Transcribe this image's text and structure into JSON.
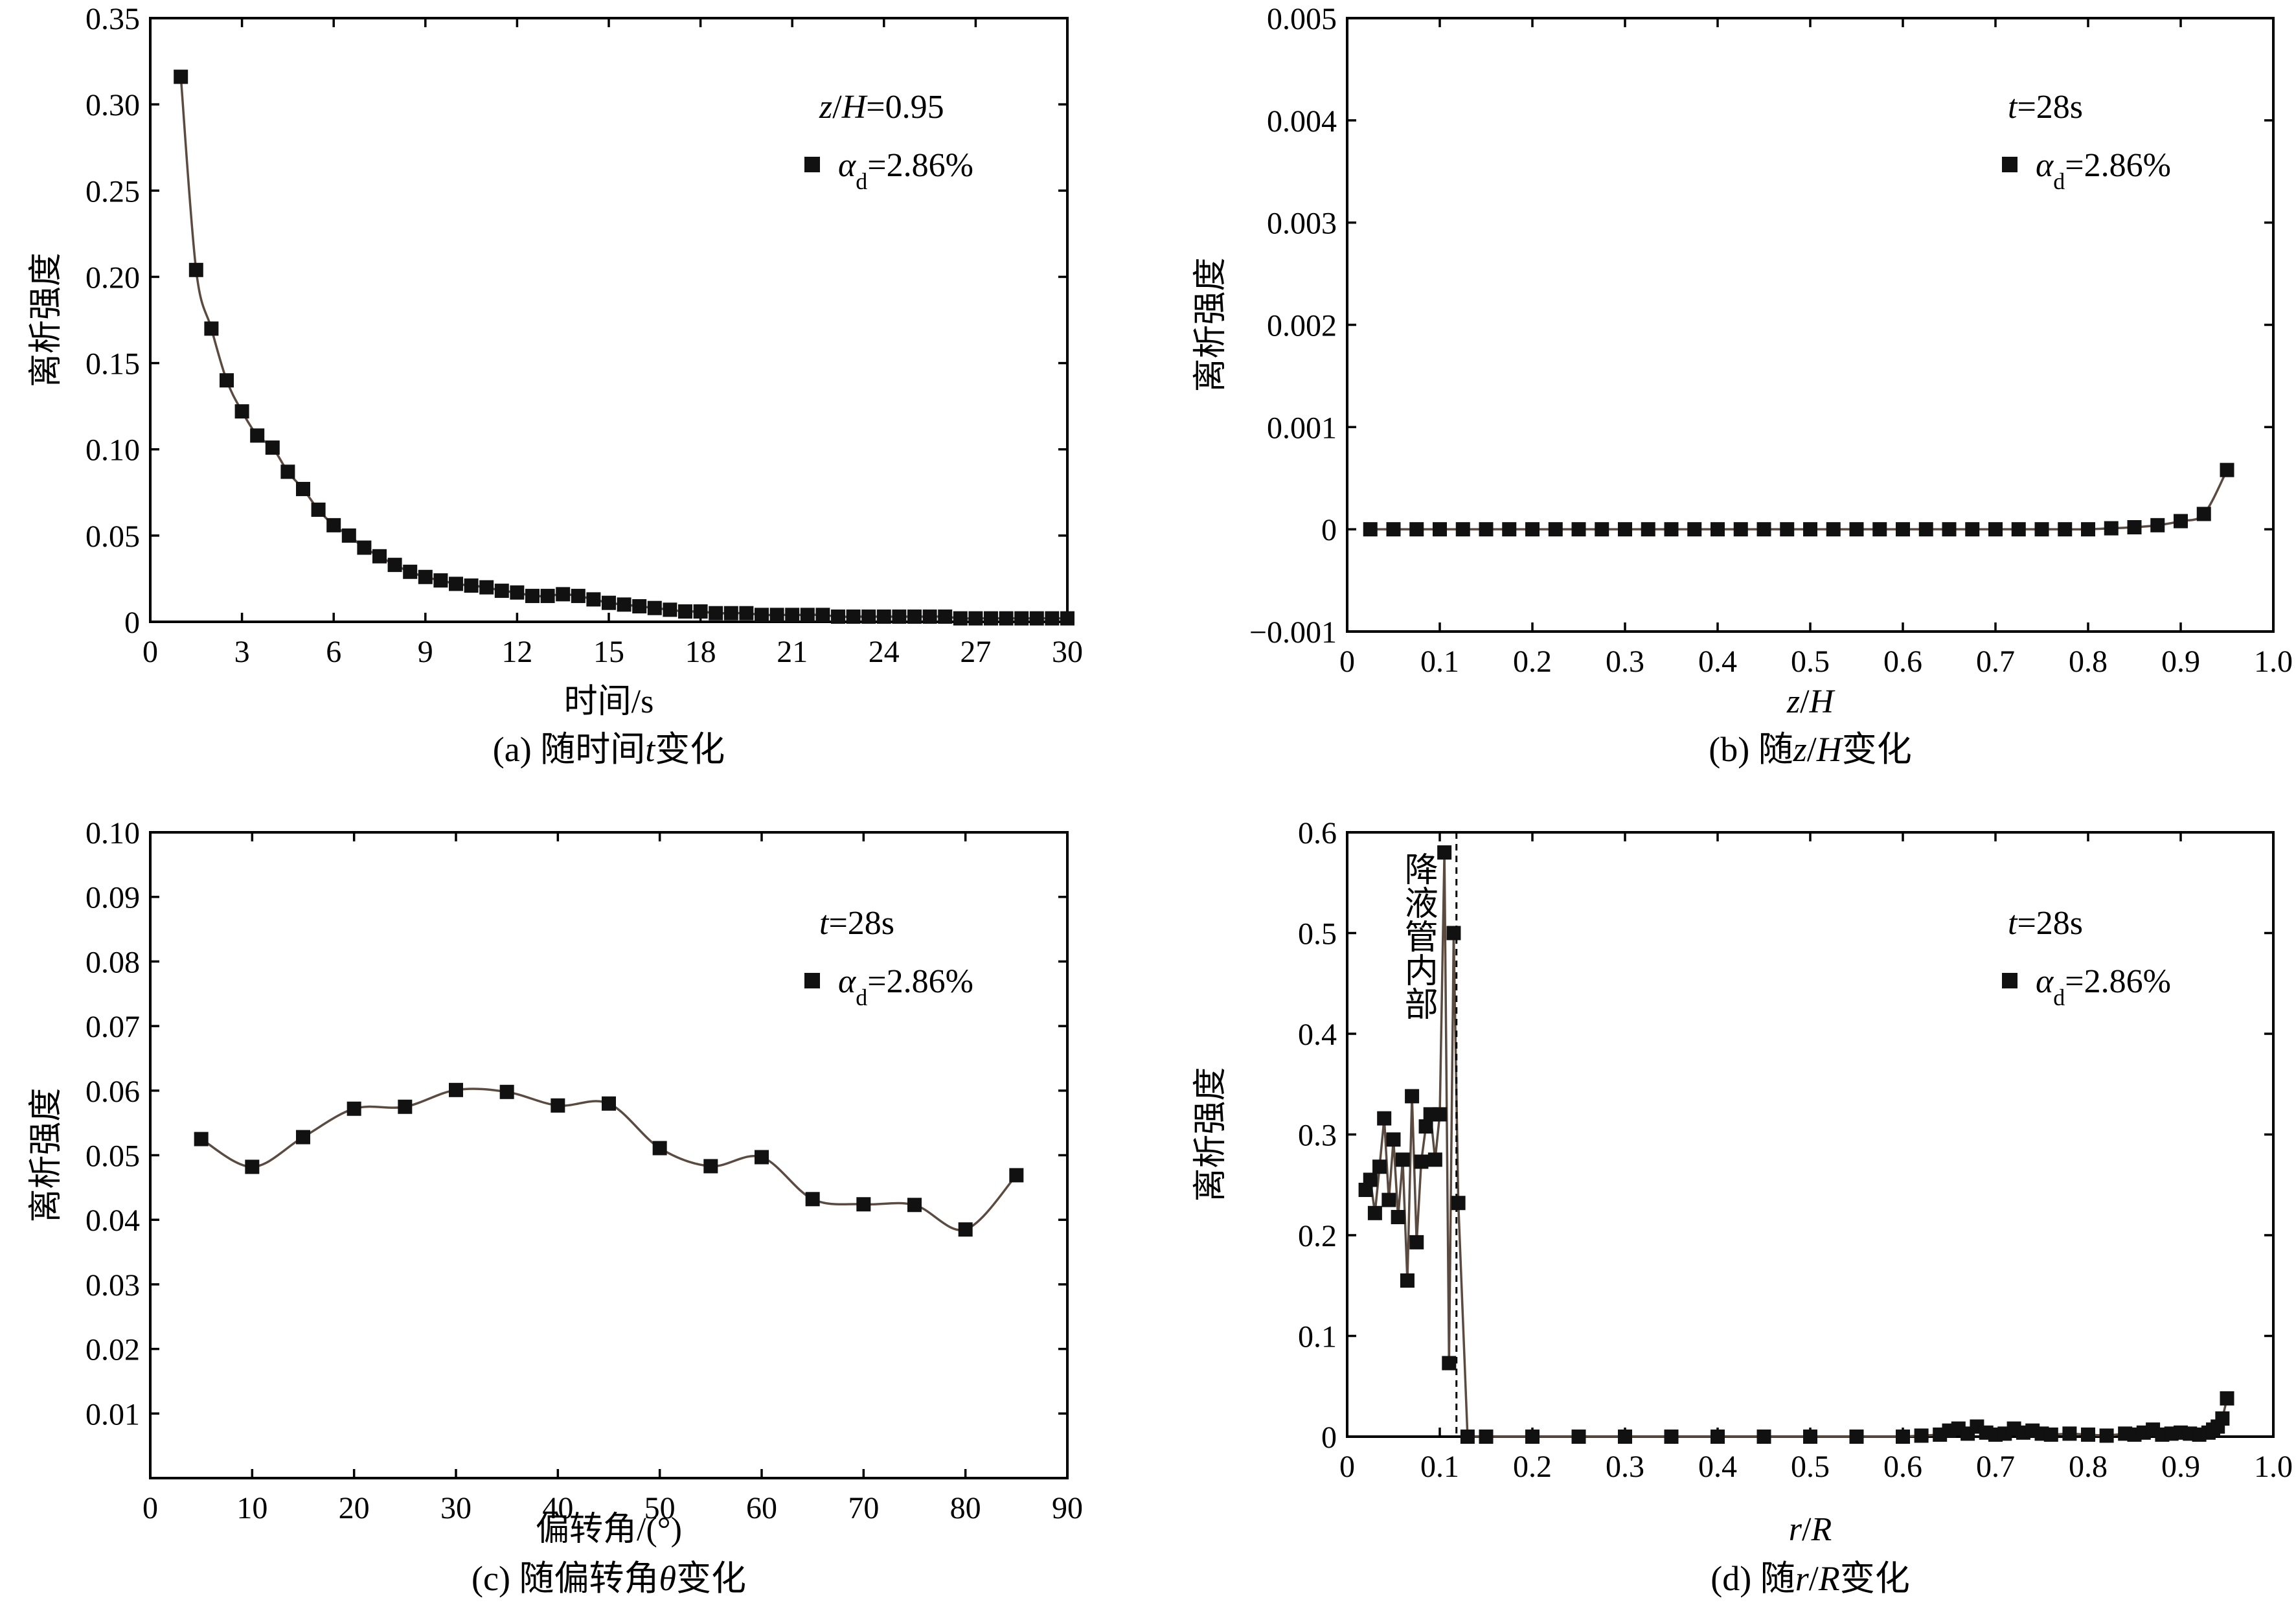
{
  "chart_data": [
    {
      "id": "a",
      "type": "line",
      "title": "(a) 随时间t变化",
      "xlabel": "时间/s",
      "ylabel": "离析强度",
      "xlim": [
        0,
        30
      ],
      "ylim": [
        0,
        0.35
      ],
      "xticks": [
        0,
        3,
        6,
        9,
        12,
        15,
        18,
        21,
        24,
        27,
        30
      ],
      "yticks": [
        0,
        0.05,
        0.1,
        0.15,
        0.2,
        0.25,
        0.3,
        0.35
      ],
      "xtick_labels": [
        "0",
        "3",
        "6",
        "9",
        "12",
        "15",
        "18",
        "21",
        "24",
        "27",
        "30"
      ],
      "ytick_labels": [
        "0",
        "0.05",
        "0.10",
        "0.15",
        "0.20",
        "0.25",
        "0.30",
        "0.35"
      ],
      "annotation": "z/H=0.95",
      "legend": "αd=2.86%",
      "x": [
        1.0,
        1.5,
        2.0,
        2.5,
        3.0,
        3.5,
        4.0,
        4.5,
        5.0,
        5.5,
        6.0,
        6.5,
        7.0,
        7.5,
        8.0,
        8.5,
        9.0,
        9.5,
        10.0,
        10.5,
        11.0,
        11.5,
        12.0,
        12.5,
        13.0,
        13.5,
        14.0,
        14.5,
        15.0,
        15.5,
        16.0,
        16.5,
        17.0,
        17.5,
        18.0,
        18.5,
        19.0,
        19.5,
        20.0,
        20.5,
        21.0,
        21.5,
        22.0,
        22.5,
        23.0,
        23.5,
        24.0,
        24.5,
        25.0,
        25.5,
        26.0,
        26.5,
        27.0,
        27.5,
        28.0,
        28.5,
        29.0,
        29.5,
        30.0
      ],
      "y": [
        0.316,
        0.204,
        0.17,
        0.14,
        0.122,
        0.108,
        0.101,
        0.087,
        0.077,
        0.065,
        0.056,
        0.05,
        0.043,
        0.038,
        0.033,
        0.029,
        0.026,
        0.024,
        0.022,
        0.021,
        0.02,
        0.018,
        0.017,
        0.015,
        0.015,
        0.016,
        0.015,
        0.013,
        0.011,
        0.01,
        0.009,
        0.008,
        0.007,
        0.006,
        0.006,
        0.005,
        0.005,
        0.005,
        0.004,
        0.004,
        0.004,
        0.004,
        0.004,
        0.003,
        0.003,
        0.003,
        0.003,
        0.003,
        0.003,
        0.003,
        0.003,
        0.002,
        0.002,
        0.002,
        0.002,
        0.002,
        0.002,
        0.002,
        0.002
      ]
    },
    {
      "id": "b",
      "type": "line",
      "title": "(b) 随z/H变化",
      "xlabel": "z/H",
      "ylabel": "离析强度",
      "xlim": [
        0,
        1.0
      ],
      "ylim": [
        -0.001,
        0.005
      ],
      "xticks": [
        0,
        0.1,
        0.2,
        0.3,
        0.4,
        0.5,
        0.6,
        0.7,
        0.8,
        0.9,
        1.0
      ],
      "yticks": [
        -0.001,
        0,
        0.001,
        0.002,
        0.003,
        0.004,
        0.005
      ],
      "xtick_labels": [
        "0",
        "0.1",
        "0.2",
        "0.3",
        "0.4",
        "0.5",
        "0.6",
        "0.7",
        "0.8",
        "0.9",
        "1.0"
      ],
      "ytick_labels": [
        "−0.001",
        "0",
        "0.001",
        "0.002",
        "0.003",
        "0.004",
        "0.005"
      ],
      "annotation": "t=28s",
      "legend": "αd=2.86%",
      "x": [
        0.025,
        0.05,
        0.075,
        0.1,
        0.125,
        0.15,
        0.175,
        0.2,
        0.225,
        0.25,
        0.275,
        0.3,
        0.325,
        0.35,
        0.375,
        0.4,
        0.425,
        0.45,
        0.475,
        0.5,
        0.525,
        0.55,
        0.575,
        0.6,
        0.625,
        0.65,
        0.675,
        0.7,
        0.725,
        0.75,
        0.775,
        0.8,
        0.825,
        0.85,
        0.875,
        0.9,
        0.925,
        0.95
      ],
      "y": [
        0,
        0,
        0,
        0,
        0,
        0,
        0,
        0,
        0,
        0,
        0,
        0,
        0,
        0,
        0,
        0,
        0,
        0,
        0,
        0,
        0,
        0,
        0,
        0,
        0,
        0,
        0,
        0,
        0,
        0,
        0,
        0,
        1e-05,
        2e-05,
        4e-05,
        8e-05,
        0.00015,
        0.00058
      ]
    },
    {
      "id": "c",
      "type": "line",
      "title": "(c) 随偏转角θ变化",
      "xlabel": "偏转角/(°)",
      "ylabel": "离析强度",
      "xlim": [
        0,
        90
      ],
      "ylim": [
        0,
        0.1
      ],
      "xticks": [
        0,
        10,
        20,
        30,
        40,
        50,
        60,
        70,
        80,
        90
      ],
      "yticks": [
        0.01,
        0.02,
        0.03,
        0.04,
        0.05,
        0.06,
        0.07,
        0.08,
        0.09,
        0.1
      ],
      "xtick_labels": [
        "0",
        "10",
        "20",
        "30",
        "40",
        "50",
        "60",
        "70",
        "80",
        "90"
      ],
      "ytick_labels": [
        "0.01",
        "0.02",
        "0.03",
        "0.04",
        "0.05",
        "0.06",
        "0.07",
        "0.08",
        "0.09",
        "0.10"
      ],
      "annotation": "t=28s",
      "legend": "αd=2.86%",
      "x": [
        5,
        10,
        15,
        20,
        25,
        30,
        35,
        40,
        45,
        50,
        55,
        60,
        65,
        70,
        75,
        80,
        85
      ],
      "y": [
        0.0525,
        0.0482,
        0.0528,
        0.0572,
        0.0575,
        0.0601,
        0.0598,
        0.0577,
        0.058,
        0.0511,
        0.0483,
        0.0497,
        0.0432,
        0.0424,
        0.0423,
        0.0385,
        0.0469
      ]
    },
    {
      "id": "d",
      "type": "line",
      "title": "(d) 随r/R变化",
      "xlabel": "r/R",
      "ylabel": "离析强度",
      "xlim": [
        0,
        1.0
      ],
      "ylim": [
        0,
        0.6
      ],
      "xticks": [
        0,
        0.1,
        0.2,
        0.3,
        0.4,
        0.5,
        0.6,
        0.7,
        0.8,
        0.9,
        1.0
      ],
      "yticks": [
        0,
        0.1,
        0.2,
        0.3,
        0.4,
        0.5,
        0.6
      ],
      "xtick_labels": [
        "0",
        "0.1",
        "0.2",
        "0.3",
        "0.4",
        "0.5",
        "0.6",
        "0.7",
        "0.8",
        "0.9",
        "1.0"
      ],
      "ytick_labels": [
        "0",
        "0.1",
        "0.2",
        "0.3",
        "0.4",
        "0.5",
        "0.6"
      ],
      "annotation": "t=28s",
      "legend": "αd=2.86%",
      "region_label": "降液管内部",
      "region_boundary_x": 0.118,
      "x": [
        0.02,
        0.025,
        0.03,
        0.035,
        0.04,
        0.045,
        0.05,
        0.055,
        0.06,
        0.065,
        0.07,
        0.075,
        0.08,
        0.085,
        0.09,
        0.095,
        0.1,
        0.105,
        0.11,
        0.115,
        0.12,
        0.13,
        0.15,
        0.2,
        0.25,
        0.3,
        0.35,
        0.4,
        0.45,
        0.5,
        0.55,
        0.6,
        0.62,
        0.64,
        0.65,
        0.66,
        0.67,
        0.68,
        0.69,
        0.7,
        0.71,
        0.72,
        0.73,
        0.74,
        0.75,
        0.76,
        0.78,
        0.8,
        0.82,
        0.84,
        0.85,
        0.86,
        0.87,
        0.88,
        0.89,
        0.9,
        0.91,
        0.92,
        0.93,
        0.935,
        0.94,
        0.945,
        0.95
      ],
      "y": [
        0.245,
        0.255,
        0.222,
        0.268,
        0.316,
        0.235,
        0.295,
        0.218,
        0.275,
        0.155,
        0.338,
        0.193,
        0.273,
        0.308,
        0.32,
        0.275,
        0.32,
        0.58,
        0.073,
        0.5,
        0.232,
        0.0,
        0.0,
        0.0,
        0.0,
        0.0,
        0.0,
        0.0,
        0.0,
        0.0,
        0.0,
        0.0,
        0.001,
        0.002,
        0.006,
        0.008,
        0.003,
        0.01,
        0.004,
        0.002,
        0.003,
        0.008,
        0.004,
        0.006,
        0.003,
        0.002,
        0.003,
        0.002,
        0.001,
        0.003,
        0.002,
        0.004,
        0.007,
        0.002,
        0.003,
        0.004,
        0.003,
        0.002,
        0.004,
        0.007,
        0.01,
        0.018,
        0.038
      ]
    }
  ]
}
